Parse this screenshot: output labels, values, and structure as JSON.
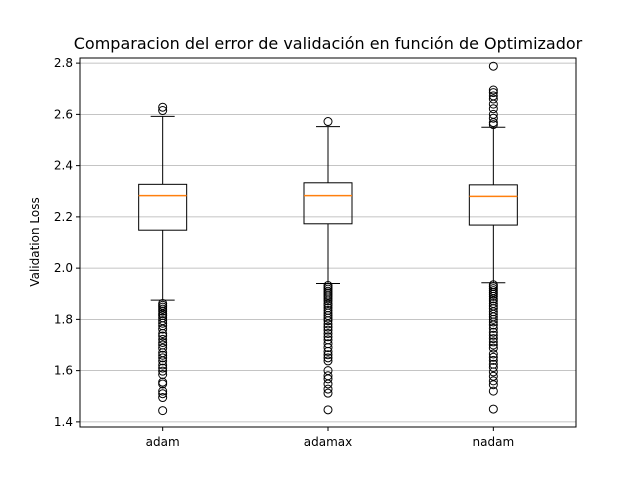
{
  "chart_data": {
    "type": "boxplot",
    "title": "Comparacion del error de validación en función de Optimizador",
    "xlabel": "",
    "ylabel": "Validation Loss",
    "ylim": [
      1.38,
      2.82
    ],
    "yticks": [
      "1.4",
      "1.6",
      "1.8",
      "2.0",
      "2.2",
      "2.4",
      "2.6",
      "2.8"
    ],
    "grid": "y",
    "categories": [
      "adam",
      "adamax",
      "nadam"
    ],
    "boxes": [
      {
        "name": "adam",
        "whislo": 1.875,
        "q1": 2.148,
        "median": 2.283,
        "q3": 2.327,
        "whishi": 2.592,
        "fliers": [
          2.628,
          2.615,
          1.862,
          1.855,
          1.848,
          1.84,
          1.832,
          1.822,
          1.815,
          1.806,
          1.795,
          1.785,
          1.775,
          1.762,
          1.745,
          1.735,
          1.722,
          1.71,
          1.7,
          1.688,
          1.67,
          1.66,
          1.65,
          1.638,
          1.622,
          1.61,
          1.598,
          1.585,
          1.555,
          1.548,
          1.52,
          1.51,
          1.495,
          1.444
        ]
      },
      {
        "name": "adamax",
        "whislo": 1.94,
        "q1": 2.173,
        "median": 2.283,
        "q3": 2.333,
        "whishi": 2.552,
        "fliers": [
          2.572,
          1.932,
          1.925,
          1.918,
          1.91,
          1.903,
          1.895,
          1.888,
          1.88,
          1.872,
          1.862,
          1.855,
          1.845,
          1.835,
          1.825,
          1.815,
          1.805,
          1.795,
          1.782,
          1.77,
          1.758,
          1.745,
          1.732,
          1.72,
          1.705,
          1.69,
          1.675,
          1.662,
          1.65,
          1.638,
          1.6,
          1.58,
          1.568,
          1.548,
          1.528,
          1.512,
          1.447
        ]
      },
      {
        "name": "nadam",
        "whislo": 1.943,
        "q1": 2.168,
        "median": 2.28,
        "q3": 2.325,
        "whishi": 2.55,
        "fliers": [
          2.788,
          2.695,
          2.685,
          2.672,
          2.66,
          2.64,
          2.622,
          2.6,
          2.585,
          2.568,
          2.56,
          1.935,
          1.928,
          1.92,
          1.912,
          1.905,
          1.898,
          1.89,
          1.88,
          1.872,
          1.862,
          1.852,
          1.842,
          1.83,
          1.82,
          1.81,
          1.8,
          1.79,
          1.778,
          1.765,
          1.75,
          1.738,
          1.725,
          1.712,
          1.7,
          1.688,
          1.665,
          1.652,
          1.64,
          1.625,
          1.612,
          1.595,
          1.578,
          1.56,
          1.545,
          1.52,
          1.45
        ]
      }
    ]
  }
}
